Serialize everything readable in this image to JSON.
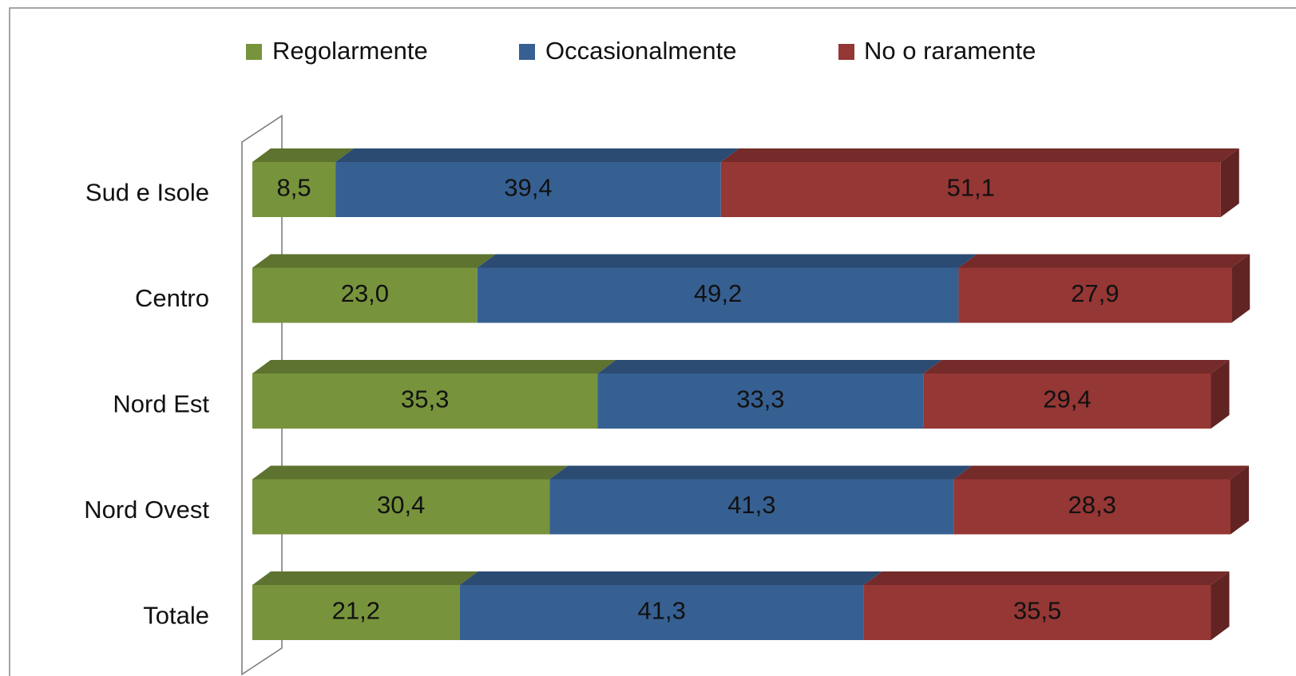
{
  "chart_data": {
    "type": "bar",
    "orientation": "horizontal",
    "stacked": true,
    "three_d": true,
    "categories": [
      "Sud e Isole",
      "Centro",
      "Nord Est",
      "Nord Ovest",
      "Totale"
    ],
    "series": [
      {
        "name": "Regolarmente",
        "color": "#77933c",
        "values": [
          8.5,
          23.0,
          35.3,
          30.4,
          21.2
        ],
        "value_labels": [
          "8,5",
          "23,0",
          "35,3",
          "30,4",
          "21,2"
        ]
      },
      {
        "name": "Occasionalmente",
        "color": "#376092",
        "values": [
          39.4,
          49.2,
          33.3,
          41.3,
          41.3
        ],
        "value_labels": [
          "39,4",
          "49,2",
          "33,3",
          "41,3",
          "41,3"
        ]
      },
      {
        "name": "No o raramente",
        "color": "#953735",
        "values": [
          51.1,
          27.9,
          29.4,
          28.3,
          35.5
        ],
        "value_labels": [
          "51,1",
          "27,9",
          "29,4",
          "28,3",
          "35,5"
        ]
      }
    ],
    "legend": "top"
  }
}
